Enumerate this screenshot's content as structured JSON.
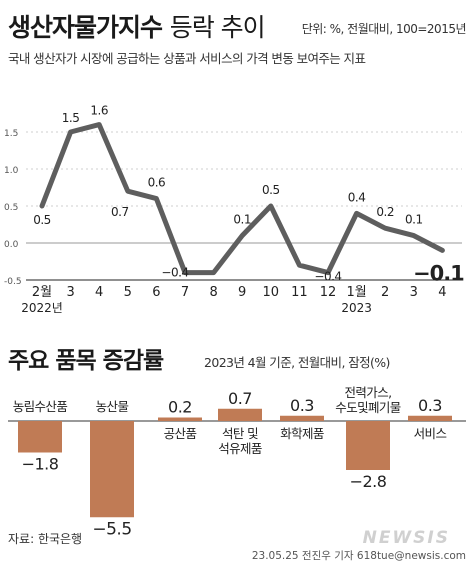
{
  "header": {
    "title_main": "생산자물가지수",
    "title_sub": "등락 추이",
    "unit_note": "단위: %, 전월대비, 100=2015년",
    "description": "국내 생산자가 시장에 공급하는 상품과 서비스의 가격 변동 보여주는 지표"
  },
  "section2": {
    "title": "주요 품목 증감률",
    "note": "2023년 4월 기준, 전월대비, 잠정(%)"
  },
  "footer": {
    "source": "자료: 한국은행",
    "credit": "23.05.25 전진우 기자 618tue@newsis.com",
    "watermark": "NEWSIS"
  },
  "colors": {
    "line": "#5e5e5e",
    "bar": "#c07b55",
    "text": "#222222",
    "grid": "#cfcfcf"
  },
  "chart_data": [
    {
      "type": "line",
      "title": "생산자물가지수 등락 추이",
      "categories": [
        "2월",
        "3",
        "4",
        "5",
        "6",
        "7",
        "8",
        "9",
        "10",
        "11",
        "12",
        "1월",
        "2",
        "3",
        "4"
      ],
      "year_labels": [
        {
          "index": 0,
          "label": "2022년"
        },
        {
          "index": 11,
          "label": "2023"
        }
      ],
      "values": [
        0.5,
        1.5,
        1.6,
        0.7,
        0.6,
        -0.4,
        -0.4,
        0.1,
        0.5,
        -0.3,
        -0.4,
        0.4,
        0.2,
        0.1,
        -0.1
      ],
      "value_labels": [
        "0.5",
        "1.5",
        "1.6",
        "0.7",
        "0.6",
        "−0.4",
        "",
        "0.1",
        "0.5",
        "",
        "−0.4",
        "0.4",
        "0.2",
        "0.1",
        "−0.1"
      ],
      "y_ticks": [
        "1.5",
        "1.0",
        "0.5",
        "0.0",
        "-0.5"
      ],
      "ylim": [
        -0.5,
        1.75
      ]
    },
    {
      "type": "bar",
      "title": "주요 품목 증감률",
      "categories": [
        "농림수산품",
        "농산물",
        "공산품",
        "석탄 및 석유제품",
        "화학제품",
        "전력가스,수도및폐기물",
        "서비스"
      ],
      "category_lines": [
        [
          "농림수산품"
        ],
        [
          "농산물"
        ],
        [
          "공산품"
        ],
        [
          "석탄 및",
          "석유제품"
        ],
        [
          "화학제품"
        ],
        [
          "전력가스,",
          "수도및폐기물"
        ],
        [
          "서비스"
        ]
      ],
      "values": [
        -1.8,
        -5.5,
        0.2,
        0.7,
        0.3,
        -2.8,
        0.3
      ],
      "value_labels": [
        "−1.8",
        "−5.5",
        "0.2",
        "0.7",
        "0.3",
        "−2.8",
        "0.3"
      ]
    }
  ]
}
